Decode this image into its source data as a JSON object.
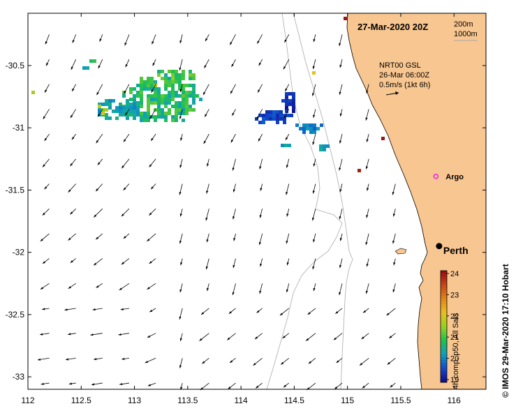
{
  "chart_data": {
    "type": "map",
    "title": "27-Mar-2020 20Z",
    "lon_range": [
      112.0,
      116.3
    ],
    "lat_range": [
      -33.1,
      -30.08
    ],
    "x_ticks": [
      112,
      112.5,
      113,
      113.5,
      114,
      114.5,
      115,
      115.5,
      116
    ],
    "x_tick_labels": [
      "112",
      "112.5",
      "113",
      "113.5",
      "114",
      "114.5",
      "115",
      "115.5",
      "116"
    ],
    "y_ticks": [
      -30.5,
      -31,
      -31.5,
      -32,
      -32.5,
      -33
    ],
    "y_tick_labels": [
      "-30.5",
      "-31",
      "-31.5",
      "-32",
      "-32.5",
      "-33"
    ],
    "contour_labels": [
      "200m",
      "1000m"
    ],
    "current_legend": {
      "line1": "NRT00 GSL",
      "line2": "26-Mar 06:00Z",
      "line3": "0.5m/s (1kt 6h)"
    },
    "markers": [
      {
        "name": "Argo",
        "lon": 115.83,
        "lat": -31.39,
        "color": "#ee22ee"
      },
      {
        "name": "Perth",
        "lon": 115.86,
        "lat": -31.95,
        "color": "#000000"
      }
    ],
    "colorbar": {
      "label": "4h comp, p50, All Sats",
      "min": 19,
      "max": 24,
      "ticks": [
        "24",
        "23",
        "22",
        "21",
        "20",
        "19"
      ],
      "colors": [
        "#9a1010",
        "#c84818",
        "#e08818",
        "#e8c020",
        "#98d020",
        "#20c050",
        "#10a0b8",
        "#1050d0",
        "#101090"
      ]
    },
    "credit": "© IMOS 29-Mar-2020 17:10 Hobart",
    "land_color": "#f8c690"
  }
}
